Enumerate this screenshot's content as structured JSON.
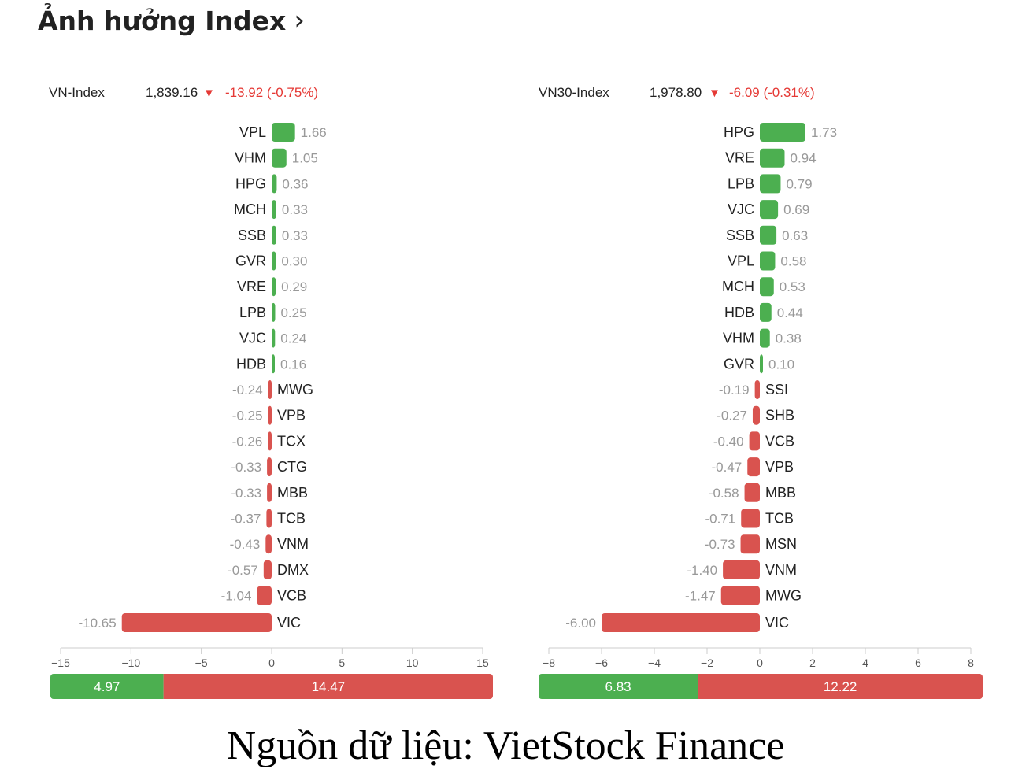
{
  "header": {
    "title": "Ảnh hưởng Index",
    "chevron_icon": "chevron-right-icon"
  },
  "colors": {
    "up": "#4caf50",
    "down": "#d9534f",
    "down_text": "#e53935",
    "axis": "#cccccc"
  },
  "chart_data": [
    {
      "type": "bar",
      "index_name": "VN-Index",
      "index_value": "1,839.16",
      "change_arrow": "▼",
      "change": "-13.92 (-0.75%)",
      "categories": [
        "VPL",
        "VHM",
        "HPG",
        "MCH",
        "SSB",
        "GVR",
        "VRE",
        "LPB",
        "VJC",
        "HDB",
        "MWG",
        "VPB",
        "TCX",
        "CTG",
        "MBB",
        "TCB",
        "VNM",
        "DMX",
        "VCB",
        "VIC"
      ],
      "values": [
        1.66,
        1.05,
        0.36,
        0.33,
        0.33,
        0.3,
        0.29,
        0.25,
        0.24,
        0.16,
        -0.24,
        -0.25,
        -0.26,
        -0.33,
        -0.33,
        -0.37,
        -0.43,
        -0.57,
        -1.04,
        -10.65
      ],
      "value_labels": [
        "1.66",
        "1.05",
        "0.36",
        "0.33",
        "0.33",
        "0.30",
        "0.29",
        "0.25",
        "0.24",
        "0.16",
        "-0.24",
        "-0.25",
        "-0.26",
        "-0.33",
        "-0.33",
        "-0.37",
        "-0.43",
        "-0.57",
        "-1.04",
        "-10.65"
      ],
      "xlim": [
        -15,
        15
      ],
      "xticks": [
        -15,
        -10,
        -5,
        0,
        5,
        10,
        15
      ],
      "xtick_labels": [
        "−15",
        "−10",
        "−5",
        "0",
        "5",
        "10",
        "15"
      ],
      "summary": {
        "positive": 4.97,
        "positive_label": "4.97",
        "negative": 14.47,
        "negative_label": "14.47"
      }
    },
    {
      "type": "bar",
      "index_name": "VN30-Index",
      "index_value": "1,978.80",
      "change_arrow": "▼",
      "change": "-6.09 (-0.31%)",
      "categories": [
        "HPG",
        "VRE",
        "LPB",
        "VJC",
        "SSB",
        "VPL",
        "MCH",
        "HDB",
        "VHM",
        "GVR",
        "SSI",
        "SHB",
        "VCB",
        "VPB",
        "MBB",
        "TCB",
        "MSN",
        "VNM",
        "MWG",
        "VIC"
      ],
      "values": [
        1.73,
        0.94,
        0.79,
        0.69,
        0.63,
        0.58,
        0.53,
        0.44,
        0.38,
        0.1,
        -0.19,
        -0.27,
        -0.4,
        -0.47,
        -0.58,
        -0.71,
        -0.73,
        -1.4,
        -1.47,
        -6.0
      ],
      "value_labels": [
        "1.73",
        "0.94",
        "0.79",
        "0.69",
        "0.63",
        "0.58",
        "0.53",
        "0.44",
        "0.38",
        "0.10",
        "-0.19",
        "-0.27",
        "-0.40",
        "-0.47",
        "-0.58",
        "-0.71",
        "-0.73",
        "-1.40",
        "-1.47",
        "-6.00"
      ],
      "xlim": [
        -8,
        8
      ],
      "xticks": [
        -8,
        -6,
        -4,
        -2,
        0,
        2,
        4,
        6,
        8
      ],
      "xtick_labels": [
        "−8",
        "−6",
        "−4",
        "−2",
        "0",
        "2",
        "4",
        "6",
        "8"
      ],
      "summary": {
        "positive": 6.83,
        "positive_label": "6.83",
        "negative": 12.22,
        "negative_label": "12.22"
      }
    }
  ],
  "source": {
    "text": "Nguồn dữ liệu: VietStock Finance"
  }
}
